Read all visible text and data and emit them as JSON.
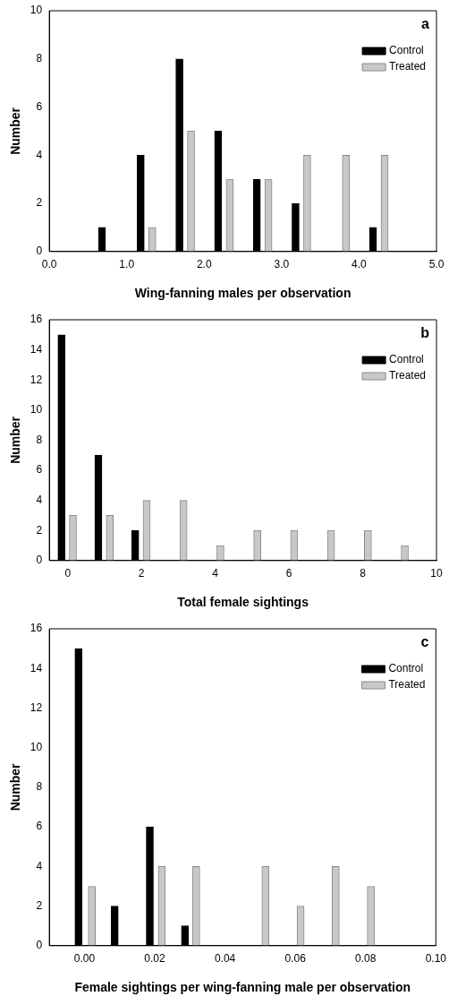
{
  "chart_data": [
    {
      "type": "bar",
      "xlabel": "Wing-fanning males per observation",
      "ylabel": "Number",
      "annotations": [
        "a"
      ],
      "legend": "top right",
      "grid": false,
      "xlim": [
        0,
        5
      ],
      "xticks": [
        {
          "value": 0,
          "label": "0.0"
        },
        {
          "value": 1,
          "label": "1.0"
        },
        {
          "value": 2,
          "label": "2.0"
        },
        {
          "value": 3,
          "label": "3.0"
        },
        {
          "value": 4,
          "label": "4.0"
        },
        {
          "value": 5,
          "label": "5.0"
        }
      ],
      "ylim": [
        0,
        10
      ],
      "yticks": [
        0,
        2,
        4,
        6,
        8,
        10
      ],
      "series": [
        {
          "name": "Control",
          "color": "#000000",
          "x": [
            0.68,
            1.18,
            1.68,
            2.18,
            2.68,
            3.18,
            4.18
          ],
          "values": [
            1,
            4,
            8,
            5,
            3,
            2,
            1
          ]
        },
        {
          "name": "Treated",
          "color": "#c8c8c8",
          "x": [
            1.33,
            1.83,
            2.33,
            2.83,
            3.33,
            3.83,
            4.33
          ],
          "values": [
            1,
            5,
            3,
            3,
            4,
            4,
            4
          ]
        }
      ]
    },
    {
      "type": "bar",
      "xlabel": "Total female sightings",
      "ylabel": "Number",
      "annotations": [
        "b"
      ],
      "legend": "top right",
      "grid": false,
      "xlim": [
        -0.5,
        10
      ],
      "xticks": [
        0,
        2,
        4,
        6,
        8,
        10
      ],
      "ylim": [
        0,
        16
      ],
      "yticks": [
        0,
        2,
        4,
        6,
        8,
        10,
        12,
        14,
        16
      ],
      "series": [
        {
          "name": "Control",
          "color": "#000000",
          "x": [
            -0.17,
            0.83,
            1.83
          ],
          "values": [
            15,
            7,
            2
          ]
        },
        {
          "name": "Treated",
          "color": "#c8c8c8",
          "x": [
            0.14,
            1.14,
            2.14,
            3.14,
            4.14,
            5.14,
            6.14,
            7.14,
            8.14,
            9.14
          ],
          "values": [
            3,
            3,
            4,
            4,
            1,
            2,
            2,
            2,
            2,
            1
          ]
        }
      ]
    },
    {
      "type": "bar",
      "xlabel": "Female sightings per wing-fanning male per observation",
      "ylabel": "Number",
      "annotations": [
        "c"
      ],
      "legend": "top right",
      "grid": false,
      "xlim": [
        -0.01,
        0.1
      ],
      "xticks": [
        {
          "value": 0,
          "label": "0.00"
        },
        {
          "value": 0.02,
          "label": "0.02"
        },
        {
          "value": 0.04,
          "label": "0.04"
        },
        {
          "value": 0.06,
          "label": "0.06"
        },
        {
          "value": 0.08,
          "label": "0.08"
        },
        {
          "value": 0.1,
          "label": "0.10"
        }
      ],
      "ylim": [
        0,
        16
      ],
      "yticks": [
        0,
        2,
        4,
        6,
        8,
        10,
        12,
        14,
        16
      ],
      "series": [
        {
          "name": "Control",
          "color": "#000000",
          "x": [
            -0.0017,
            0.0086,
            0.0186,
            0.0286
          ],
          "values": [
            15,
            2,
            6,
            1
          ]
        },
        {
          "name": "Treated",
          "color": "#c8c8c8",
          "x": [
            0.0021,
            0.022,
            0.0318,
            0.0515,
            0.0615,
            0.0715,
            0.0815
          ],
          "values": [
            3,
            4,
            4,
            4,
            2,
            4,
            3
          ]
        }
      ]
    }
  ]
}
